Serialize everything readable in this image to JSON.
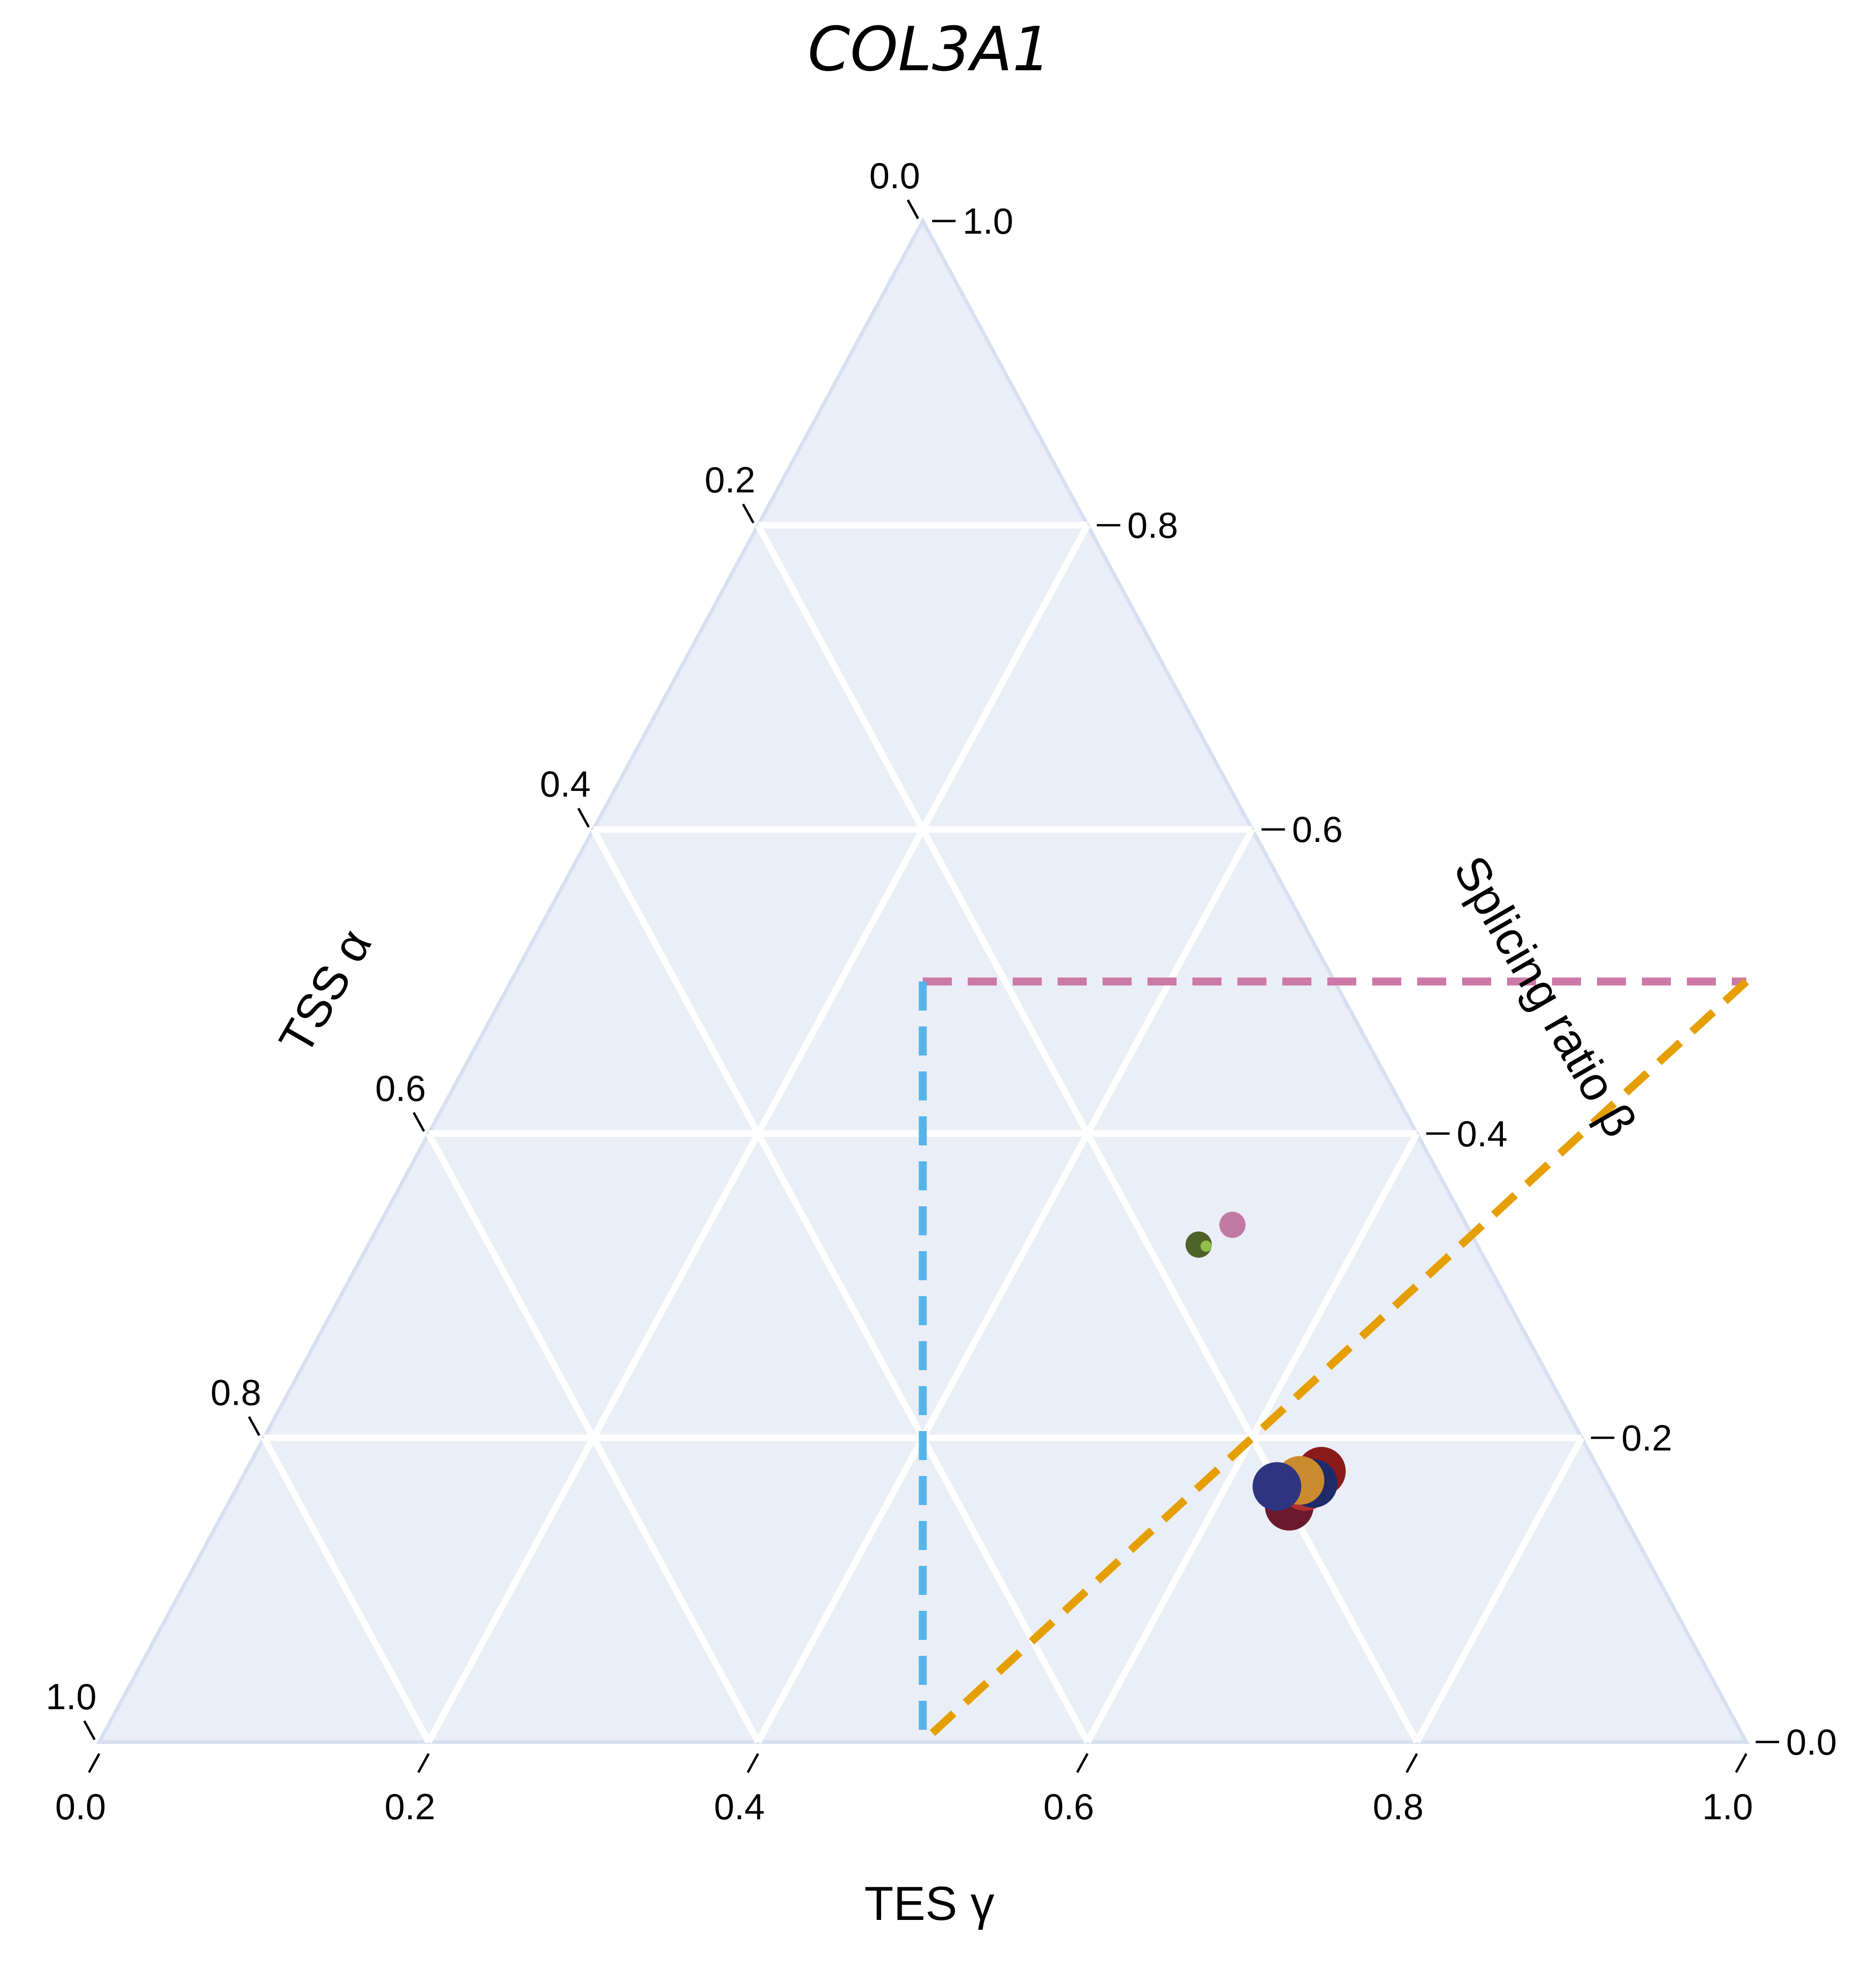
{
  "chart_data": {
    "type": "scatter",
    "subtype": "ternary",
    "title": "COL3A1",
    "axes": {
      "left": {
        "label": "TSS α",
        "ticks": [
          "0.0",
          "0.2",
          "0.4",
          "0.6",
          "0.8",
          "1.0"
        ]
      },
      "right": {
        "label": "Splicing ratio β",
        "ticks": [
          "0.0",
          "0.2",
          "0.4",
          "0.6",
          "0.8",
          "1.0"
        ]
      },
      "bottom": {
        "label": "TES γ",
        "ticks": [
          "0.0",
          "0.2",
          "0.4",
          "0.6",
          "0.8",
          "1.0"
        ]
      }
    },
    "background_color": "#eaeef6",
    "grid": true,
    "grid_color": "#ffffff",
    "reference_lines": [
      {
        "from": {
          "beta": 0.5,
          "gamma": 0.25
        },
        "to": {
          "beta": 0.5,
          "gamma": 0.75
        },
        "color": "#cc79a7",
        "style": "dashed"
      },
      {
        "from": {
          "beta": 0.5,
          "gamma": 0.25
        },
        "to": {
          "beta": 0.0,
          "gamma": 0.5
        },
        "color": "#56b4e9",
        "style": "dashed"
      },
      {
        "from": {
          "beta": 0.5,
          "gamma": 0.75
        },
        "to": {
          "beta": 0.0,
          "gamma": 0.5
        },
        "color": "#e69f00",
        "style": "dashed"
      }
    ],
    "points": [
      {
        "beta": 0.34,
        "gamma": 0.518,
        "color": "#c17ba2",
        "size": "small"
      },
      {
        "beta": 0.327,
        "gamma": 0.504,
        "color": "#4f6228",
        "size": "small"
      },
      {
        "beta": 0.326,
        "gamma": 0.509,
        "color": "#8fbf4a",
        "size": "tiny"
      },
      {
        "beta": 0.155,
        "gamma": 0.645,
        "color": "#6b1a2e",
        "size": "large"
      },
      {
        "beta": 0.178,
        "gamma": 0.653,
        "color": "#8b1a1a",
        "size": "large"
      },
      {
        "beta": 0.168,
        "gamma": 0.648,
        "color": "#b03030",
        "size": "large"
      },
      {
        "beta": 0.17,
        "gamma": 0.652,
        "color": "#1f2a6a",
        "size": "large"
      },
      {
        "beta": 0.172,
        "gamma": 0.643,
        "color": "#cc8a2e",
        "size": "large"
      },
      {
        "beta": 0.168,
        "gamma": 0.631,
        "color": "#2e3580",
        "size": "large"
      }
    ]
  }
}
